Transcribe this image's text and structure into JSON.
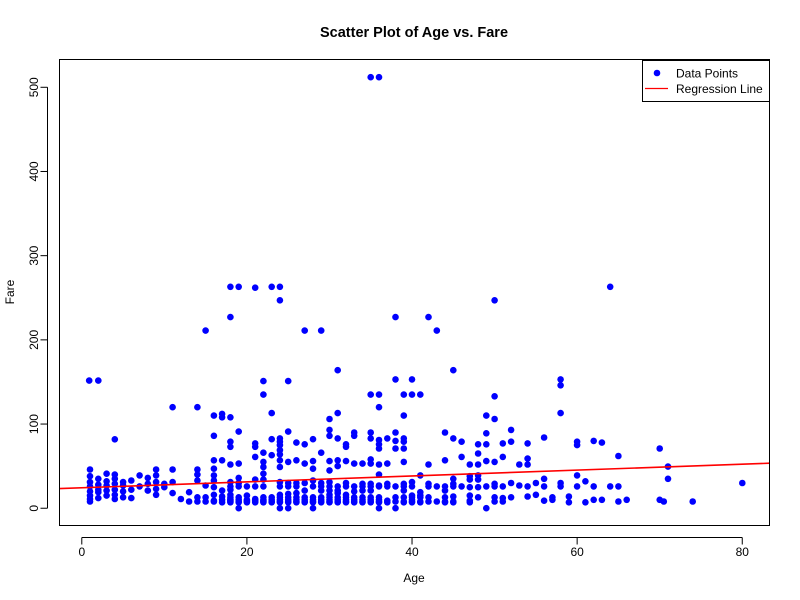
{
  "chart_data": {
    "type": "scatter",
    "title": "Scatter Plot of Age vs. Fare",
    "xlabel": "Age",
    "ylabel": "Fare",
    "xlim": [
      -2.7,
      83.3
    ],
    "ylim": [
      -20.5,
      533.0
    ],
    "x_ticks": [
      "0",
      "20",
      "40",
      "60",
      "80"
    ],
    "y_ticks": [
      "0",
      "100",
      "200",
      "300",
      "400",
      "500"
    ],
    "grid": false,
    "legend": {
      "position": "top-right",
      "entries": [
        "Data Points",
        "Regression Line"
      ]
    },
    "colors": {
      "points": "#0000ff",
      "regression": "#ff0000"
    },
    "regression": {
      "intercept": 24.3,
      "slope": 0.35
    },
    "points": [
      [
        0.9,
        151.6
      ],
      [
        2,
        151.6
      ],
      [
        4,
        81.9
      ],
      [
        1,
        8
      ],
      [
        1,
        11
      ],
      [
        1,
        15
      ],
      [
        1,
        20
      ],
      [
        1,
        26
      ],
      [
        1,
        31
      ],
      [
        1,
        38
      ],
      [
        1,
        46
      ],
      [
        2,
        12
      ],
      [
        2,
        19
      ],
      [
        2,
        22
      ],
      [
        2,
        28
      ],
      [
        2,
        35
      ],
      [
        3,
        15
      ],
      [
        3,
        21
      ],
      [
        3,
        27
      ],
      [
        3,
        32
      ],
      [
        3,
        41
      ],
      [
        4,
        11
      ],
      [
        4,
        16
      ],
      [
        4,
        22
      ],
      [
        4,
        29
      ],
      [
        4,
        35
      ],
      [
        4,
        40
      ],
      [
        5,
        13
      ],
      [
        5,
        20
      ],
      [
        5,
        27
      ],
      [
        5,
        31
      ],
      [
        6,
        12
      ],
      [
        6,
        22
      ],
      [
        6,
        33
      ],
      [
        7,
        26
      ],
      [
        7,
        39
      ],
      [
        8,
        21
      ],
      [
        8,
        29
      ],
      [
        8,
        36
      ],
      [
        9,
        16
      ],
      [
        9,
        23
      ],
      [
        9,
        31
      ],
      [
        9,
        39
      ],
      [
        9,
        46
      ],
      [
        10,
        25
      ],
      [
        10,
        29
      ],
      [
        11,
        18
      ],
      [
        11,
        31
      ],
      [
        11,
        46
      ],
      [
        11,
        120
      ],
      [
        12,
        11
      ],
      [
        13,
        8
      ],
      [
        13,
        19
      ],
      [
        14,
        8
      ],
      [
        14,
        13
      ],
      [
        14,
        33
      ],
      [
        14,
        40
      ],
      [
        14,
        46
      ],
      [
        14,
        120
      ],
      [
        15,
        8
      ],
      [
        15,
        13
      ],
      [
        15,
        27
      ],
      [
        15,
        211
      ],
      [
        16,
        8
      ],
      [
        16,
        9
      ],
      [
        16,
        16
      ],
      [
        16,
        25
      ],
      [
        16,
        33
      ],
      [
        16,
        39
      ],
      [
        16,
        47
      ],
      [
        16,
        57
      ],
      [
        16,
        86
      ],
      [
        16,
        110
      ],
      [
        17,
        7
      ],
      [
        17,
        10
      ],
      [
        17,
        14
      ],
      [
        17,
        21
      ],
      [
        17,
        57
      ],
      [
        17,
        108
      ],
      [
        17,
        112
      ],
      [
        18,
        7
      ],
      [
        18,
        8
      ],
      [
        18,
        9
      ],
      [
        18,
        10
      ],
      [
        18,
        11
      ],
      [
        18,
        13
      ],
      [
        18,
        16
      ],
      [
        18,
        22
      ],
      [
        18,
        26
      ],
      [
        18,
        31
      ],
      [
        18,
        52
      ],
      [
        18,
        73
      ],
      [
        18,
        79
      ],
      [
        18,
        108
      ],
      [
        18,
        227
      ],
      [
        18,
        263
      ],
      [
        19,
        0
      ],
      [
        19,
        7
      ],
      [
        19,
        8
      ],
      [
        19,
        10
      ],
      [
        19,
        13
      ],
      [
        19,
        26
      ],
      [
        19,
        30
      ],
      [
        19,
        36
      ],
      [
        19,
        53
      ],
      [
        19,
        91
      ],
      [
        19,
        263
      ],
      [
        20,
        7
      ],
      [
        20,
        8
      ],
      [
        20,
        9
      ],
      [
        20,
        10
      ],
      [
        20,
        15
      ],
      [
        20,
        26
      ],
      [
        21,
        7
      ],
      [
        21,
        8
      ],
      [
        21,
        9
      ],
      [
        21,
        10
      ],
      [
        21,
        11
      ],
      [
        21,
        26
      ],
      [
        21,
        34
      ],
      [
        21,
        61
      ],
      [
        21,
        73
      ],
      [
        21,
        77
      ],
      [
        21,
        262
      ],
      [
        22,
        7
      ],
      [
        22,
        8
      ],
      [
        22,
        9
      ],
      [
        22,
        10
      ],
      [
        22,
        13
      ],
      [
        22,
        26
      ],
      [
        22,
        34
      ],
      [
        22,
        41
      ],
      [
        22,
        49
      ],
      [
        22,
        55
      ],
      [
        22,
        66
      ],
      [
        22,
        135
      ],
      [
        22,
        151
      ],
      [
        23,
        7
      ],
      [
        23,
        8
      ],
      [
        23,
        10
      ],
      [
        23,
        13
      ],
      [
        23,
        63
      ],
      [
        23,
        82
      ],
      [
        23,
        113
      ],
      [
        23,
        263
      ],
      [
        24,
        0
      ],
      [
        24,
        7
      ],
      [
        24,
        8
      ],
      [
        24,
        10
      ],
      [
        24,
        13
      ],
      [
        24,
        16
      ],
      [
        24,
        26
      ],
      [
        24,
        31
      ],
      [
        24,
        49
      ],
      [
        24,
        57
      ],
      [
        24,
        64
      ],
      [
        24,
        69
      ],
      [
        24,
        75
      ],
      [
        24,
        79
      ],
      [
        24,
        83
      ],
      [
        24,
        247
      ],
      [
        24,
        263
      ],
      [
        25,
        0
      ],
      [
        25,
        7
      ],
      [
        25,
        8
      ],
      [
        25,
        10
      ],
      [
        25,
        13
      ],
      [
        25,
        17
      ],
      [
        25,
        26
      ],
      [
        25,
        30
      ],
      [
        25,
        55
      ],
      [
        25,
        91
      ],
      [
        25,
        151
      ],
      [
        26,
        7
      ],
      [
        26,
        8
      ],
      [
        26,
        10
      ],
      [
        26,
        13
      ],
      [
        26,
        18
      ],
      [
        26,
        26
      ],
      [
        26,
        30
      ],
      [
        26,
        57
      ],
      [
        26,
        78
      ],
      [
        27,
        7
      ],
      [
        27,
        8
      ],
      [
        27,
        10
      ],
      [
        27,
        13
      ],
      [
        27,
        21
      ],
      [
        27,
        30
      ],
      [
        27,
        53
      ],
      [
        27,
        76
      ],
      [
        27,
        211
      ],
      [
        28,
        0
      ],
      [
        28,
        7
      ],
      [
        28,
        8
      ],
      [
        28,
        10
      ],
      [
        28,
        13
      ],
      [
        28,
        26
      ],
      [
        28,
        33
      ],
      [
        28,
        47
      ],
      [
        28,
        56
      ],
      [
        28,
        82
      ],
      [
        29,
        7
      ],
      [
        29,
        8
      ],
      [
        29,
        10
      ],
      [
        29,
        13
      ],
      [
        29,
        21
      ],
      [
        29,
        26
      ],
      [
        29,
        30
      ],
      [
        29,
        66
      ],
      [
        29,
        211
      ],
      [
        30,
        7
      ],
      [
        30,
        8
      ],
      [
        30,
        10
      ],
      [
        30,
        13
      ],
      [
        30,
        16
      ],
      [
        30,
        21
      ],
      [
        30,
        26
      ],
      [
        30,
        31
      ],
      [
        30,
        45
      ],
      [
        30,
        56
      ],
      [
        30,
        86
      ],
      [
        30,
        93
      ],
      [
        30,
        106
      ],
      [
        31,
        7
      ],
      [
        31,
        8
      ],
      [
        31,
        10
      ],
      [
        31,
        13
      ],
      [
        31,
        18
      ],
      [
        31,
        21
      ],
      [
        31,
        26
      ],
      [
        31,
        50
      ],
      [
        31,
        57
      ],
      [
        31,
        83
      ],
      [
        31,
        113
      ],
      [
        31,
        164
      ],
      [
        32,
        7
      ],
      [
        32,
        8
      ],
      [
        32,
        10
      ],
      [
        32,
        13
      ],
      [
        32,
        16
      ],
      [
        32,
        26
      ],
      [
        32,
        30
      ],
      [
        32,
        56
      ],
      [
        32,
        73
      ],
      [
        32,
        76
      ],
      [
        33,
        7
      ],
      [
        33,
        8
      ],
      [
        33,
        10
      ],
      [
        33,
        13
      ],
      [
        33,
        20
      ],
      [
        33,
        26
      ],
      [
        33,
        53
      ],
      [
        33,
        86
      ],
      [
        33,
        90
      ],
      [
        34,
        7
      ],
      [
        34,
        8
      ],
      [
        34,
        10
      ],
      [
        34,
        13
      ],
      [
        34,
        21
      ],
      [
        34,
        26
      ],
      [
        34,
        29
      ],
      [
        34,
        53
      ],
      [
        35,
        7
      ],
      [
        35,
        8
      ],
      [
        35,
        10
      ],
      [
        35,
        13
      ],
      [
        35,
        21
      ],
      [
        35,
        26
      ],
      [
        35,
        29
      ],
      [
        35,
        53
      ],
      [
        35,
        58
      ],
      [
        35,
        83
      ],
      [
        35,
        90
      ],
      [
        35,
        135
      ],
      [
        35,
        512
      ],
      [
        36,
        0
      ],
      [
        36,
        7
      ],
      [
        36,
        8
      ],
      [
        36,
        10
      ],
      [
        36,
        13
      ],
      [
        36,
        26
      ],
      [
        36,
        27
      ],
      [
        36,
        40
      ],
      [
        36,
        52
      ],
      [
        36,
        71
      ],
      [
        36,
        76
      ],
      [
        36,
        81
      ],
      [
        36,
        120
      ],
      [
        36,
        135
      ],
      [
        36,
        512
      ],
      [
        37,
        7
      ],
      [
        37,
        9
      ],
      [
        37,
        26
      ],
      [
        37,
        29
      ],
      [
        37,
        53
      ],
      [
        37,
        83
      ],
      [
        38,
        0
      ],
      [
        38,
        8
      ],
      [
        38,
        13
      ],
      [
        38,
        26
      ],
      [
        38,
        71
      ],
      [
        38,
        80
      ],
      [
        38,
        90
      ],
      [
        38,
        153
      ],
      [
        38,
        227
      ],
      [
        39,
        7
      ],
      [
        39,
        8
      ],
      [
        39,
        13
      ],
      [
        39,
        21
      ],
      [
        39,
        26
      ],
      [
        39,
        29
      ],
      [
        39,
        55
      ],
      [
        39,
        71
      ],
      [
        39,
        79
      ],
      [
        39,
        83
      ],
      [
        39,
        110
      ],
      [
        39,
        135
      ],
      [
        40,
        7
      ],
      [
        40,
        8
      ],
      [
        40,
        10
      ],
      [
        40,
        13
      ],
      [
        40,
        15
      ],
      [
        40,
        26
      ],
      [
        40,
        31
      ],
      [
        40,
        135
      ],
      [
        40,
        153
      ],
      [
        41,
        7
      ],
      [
        41,
        8
      ],
      [
        41,
        13
      ],
      [
        41,
        15
      ],
      [
        41,
        19
      ],
      [
        41,
        39
      ],
      [
        41,
        135
      ],
      [
        42,
        8
      ],
      [
        42,
        13
      ],
      [
        42,
        26
      ],
      [
        42,
        29
      ],
      [
        42,
        52
      ],
      [
        42,
        227
      ],
      [
        43,
        8
      ],
      [
        43,
        26
      ],
      [
        43,
        211
      ],
      [
        44,
        7
      ],
      [
        44,
        8
      ],
      [
        44,
        13
      ],
      [
        44,
        21
      ],
      [
        44,
        26
      ],
      [
        44,
        57
      ],
      [
        44,
        90
      ],
      [
        45,
        7
      ],
      [
        45,
        8
      ],
      [
        45,
        14
      ],
      [
        45,
        26
      ],
      [
        45,
        29
      ],
      [
        45,
        35
      ],
      [
        45,
        83
      ],
      [
        45,
        164
      ],
      [
        46,
        26
      ],
      [
        46,
        61
      ],
      [
        46,
        79
      ],
      [
        47,
        7
      ],
      [
        47,
        9
      ],
      [
        47,
        15
      ],
      [
        47,
        25
      ],
      [
        47,
        34
      ],
      [
        47,
        38
      ],
      [
        47,
        52
      ],
      [
        48,
        13
      ],
      [
        48,
        25
      ],
      [
        48,
        34
      ],
      [
        48,
        39
      ],
      [
        48,
        52
      ],
      [
        48,
        65
      ],
      [
        48,
        76
      ],
      [
        49,
        0
      ],
      [
        49,
        26
      ],
      [
        49,
        56
      ],
      [
        49,
        76
      ],
      [
        49,
        89
      ],
      [
        49,
        110
      ],
      [
        50,
        8
      ],
      [
        50,
        13
      ],
      [
        50,
        26
      ],
      [
        50,
        29
      ],
      [
        50,
        55
      ],
      [
        50,
        106
      ],
      [
        50,
        133
      ],
      [
        50,
        247
      ],
      [
        51,
        8
      ],
      [
        51,
        12
      ],
      [
        51,
        26
      ],
      [
        51,
        61
      ],
      [
        51,
        77
      ],
      [
        52,
        13
      ],
      [
        52,
        30
      ],
      [
        52,
        79
      ],
      [
        52,
        93
      ],
      [
        53,
        27
      ],
      [
        53,
        52
      ],
      [
        54,
        14
      ],
      [
        54,
        26
      ],
      [
        54,
        52
      ],
      [
        54,
        59
      ],
      [
        54,
        77
      ],
      [
        55,
        16
      ],
      [
        55,
        30
      ],
      [
        56,
        9
      ],
      [
        56,
        26
      ],
      [
        56,
        35
      ],
      [
        56,
        84
      ],
      [
        57,
        10
      ],
      [
        57,
        13
      ],
      [
        58,
        26
      ],
      [
        58,
        30
      ],
      [
        58,
        113
      ],
      [
        58,
        146
      ],
      [
        58,
        153
      ],
      [
        59,
        7
      ],
      [
        59,
        14
      ],
      [
        60,
        26
      ],
      [
        60,
        39
      ],
      [
        60,
        75
      ],
      [
        60,
        79
      ],
      [
        61,
        7
      ],
      [
        61,
        32
      ],
      [
        62,
        10
      ],
      [
        62,
        26
      ],
      [
        62,
        80
      ],
      [
        63,
        10
      ],
      [
        63,
        78
      ],
      [
        64,
        26
      ],
      [
        64,
        263
      ],
      [
        65,
        8
      ],
      [
        65,
        26
      ],
      [
        65,
        62
      ],
      [
        66,
        10
      ],
      [
        70,
        10
      ],
      [
        70,
        71
      ],
      [
        70.5,
        8
      ],
      [
        71,
        35
      ],
      [
        71,
        49.5
      ],
      [
        74,
        8
      ],
      [
        80,
        30
      ]
    ]
  }
}
